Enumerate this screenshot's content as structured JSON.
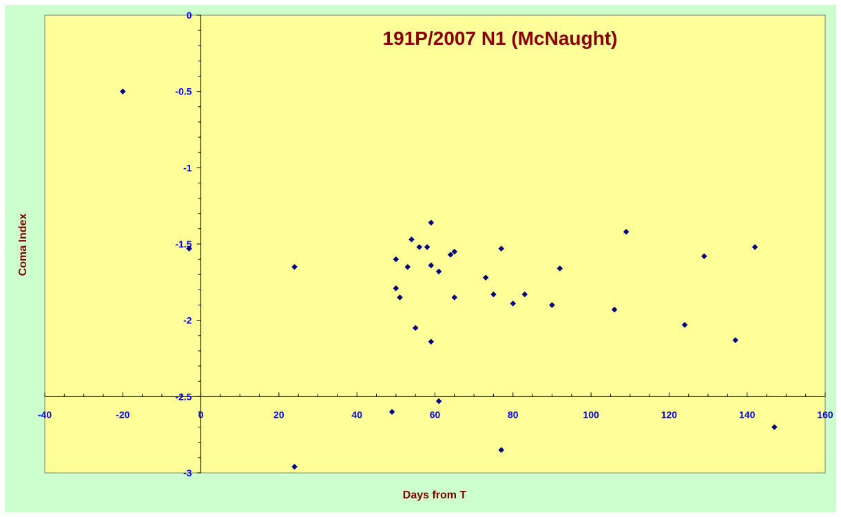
{
  "chart_data": {
    "type": "scatter",
    "title": "191P/2007 N1 (McNaught)",
    "xlabel": "Days from T",
    "ylabel": "Coma Index",
    "xlim": [
      -40,
      160
    ],
    "ylim": [
      -3,
      0
    ],
    "x_ticks": [
      "-40",
      "-20",
      "0",
      "20",
      "40",
      "60",
      "80",
      "100",
      "120",
      "140",
      "160"
    ],
    "y_ticks": [
      "0",
      "-0.5",
      "-1",
      "-1.5",
      "-2",
      "-2.5",
      "-3"
    ],
    "x_axis_crosses_y": -2.5,
    "y_axis_crosses_x": 0,
    "grid": false,
    "legend": "none",
    "colors": {
      "outer_background": "#ccffcc",
      "plot_background": "#ffff99",
      "marker": "#000080",
      "title": "#8b0000",
      "axis_title": "#800000",
      "tick_label": "#0000ff"
    },
    "points": [
      {
        "x": -20,
        "y": -0.5
      },
      {
        "x": -3,
        "y": -1.53
      },
      {
        "x": 24,
        "y": -1.65
      },
      {
        "x": 24,
        "y": -2.96
      },
      {
        "x": 49,
        "y": -2.6
      },
      {
        "x": 50,
        "y": -1.6
      },
      {
        "x": 50,
        "y": -1.79
      },
      {
        "x": 51,
        "y": -1.85
      },
      {
        "x": 53,
        "y": -1.65
      },
      {
        "x": 54,
        "y": -1.47
      },
      {
        "x": 55,
        "y": -2.05
      },
      {
        "x": 56,
        "y": -1.52
      },
      {
        "x": 58,
        "y": -1.52
      },
      {
        "x": 59,
        "y": -1.36
      },
      {
        "x": 59,
        "y": -1.64
      },
      {
        "x": 59,
        "y": -2.14
      },
      {
        "x": 61,
        "y": -1.68
      },
      {
        "x": 61,
        "y": -2.53
      },
      {
        "x": 64,
        "y": -1.57
      },
      {
        "x": 65,
        "y": -1.55
      },
      {
        "x": 65,
        "y": -1.85
      },
      {
        "x": 73,
        "y": -1.72
      },
      {
        "x": 75,
        "y": -1.83
      },
      {
        "x": 77,
        "y": -1.53
      },
      {
        "x": 77,
        "y": -2.85
      },
      {
        "x": 80,
        "y": -1.89
      },
      {
        "x": 83,
        "y": -1.83
      },
      {
        "x": 90,
        "y": -1.9
      },
      {
        "x": 92,
        "y": -1.66
      },
      {
        "x": 106,
        "y": -1.93
      },
      {
        "x": 109,
        "y": -1.42
      },
      {
        "x": 124,
        "y": -2.03
      },
      {
        "x": 129,
        "y": -1.58
      },
      {
        "x": 137,
        "y": -2.13
      },
      {
        "x": 142,
        "y": -1.52
      },
      {
        "x": 147,
        "y": -2.7
      }
    ]
  }
}
